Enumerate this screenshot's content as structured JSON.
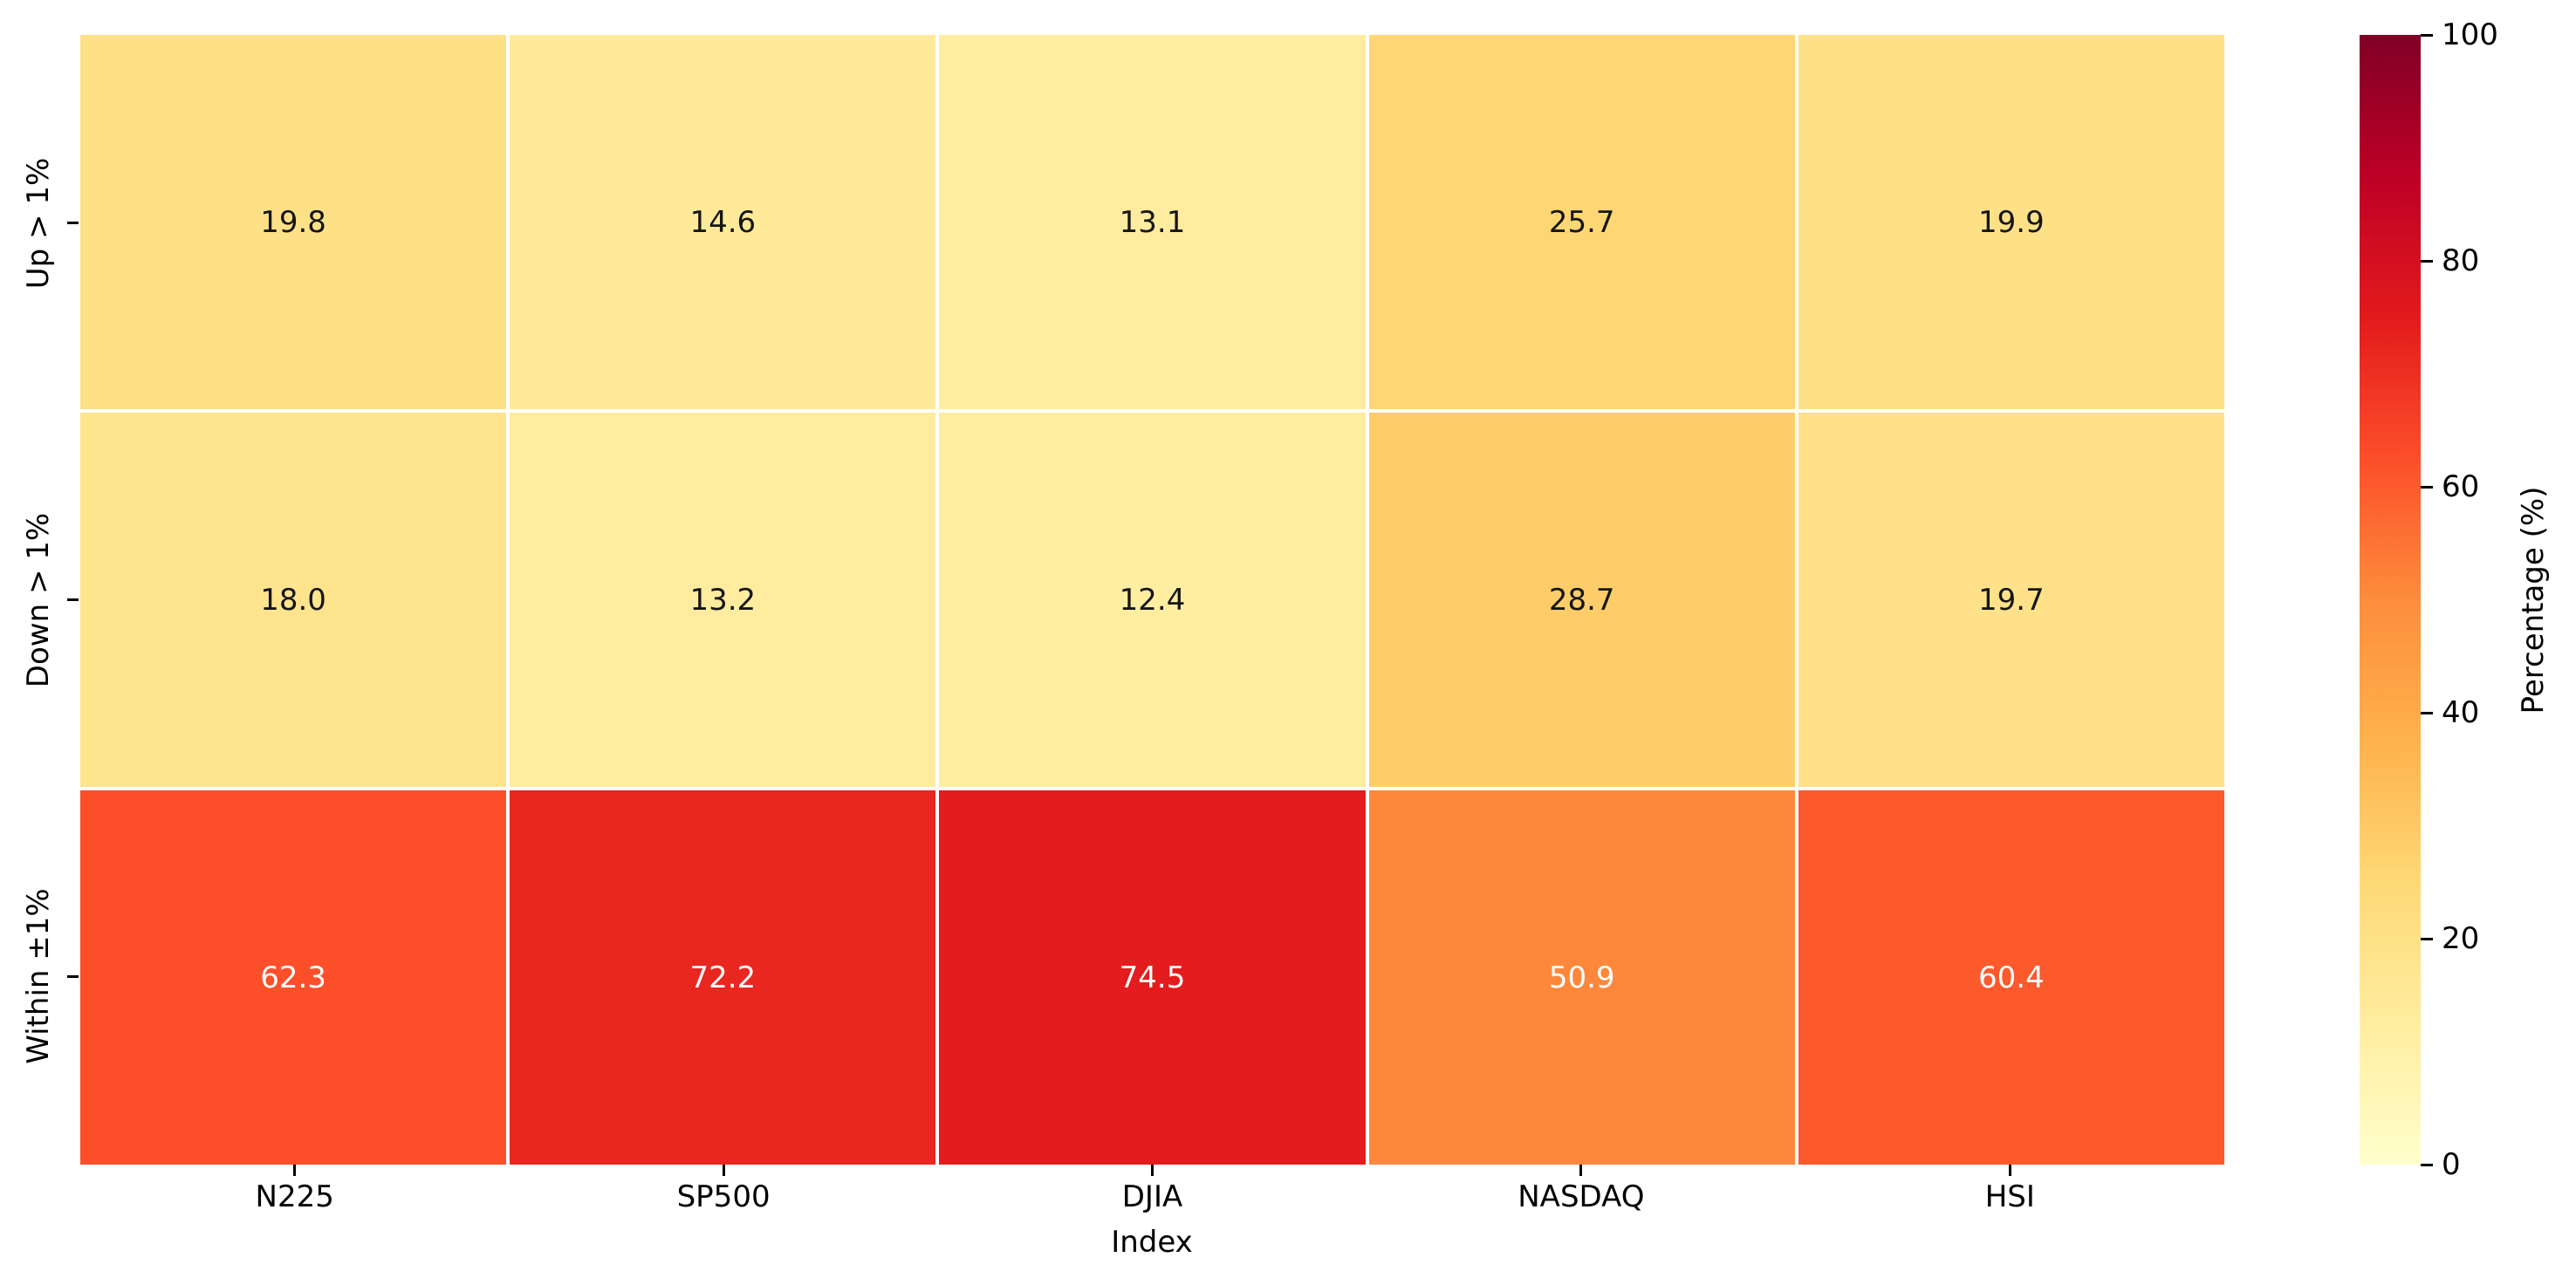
{
  "chart_data": {
    "type": "heatmap",
    "xlabel": "Index",
    "colorbar_label": "Percentage (%)",
    "columns": [
      "N225",
      "SP500",
      "DJIA",
      "NASDAQ",
      "HSI"
    ],
    "rows": [
      "Up > 1%",
      "Down > 1%",
      "Within ±1%"
    ],
    "values": [
      [
        19.8,
        14.6,
        13.1,
        25.7,
        19.9
      ],
      [
        18.0,
        13.2,
        12.4,
        28.7,
        19.7
      ],
      [
        62.3,
        72.2,
        74.5,
        50.9,
        60.4
      ]
    ],
    "value_decimals": 1,
    "vmin": 0,
    "vmax": 100,
    "colorbar_ticks": [
      0,
      20,
      40,
      60,
      80,
      100
    ],
    "colormap": "YlOrRd",
    "colormap_stops": [
      {
        "t": 0.0,
        "color": "#ffffcc"
      },
      {
        "t": 0.125,
        "color": "#ffeda0"
      },
      {
        "t": 0.25,
        "color": "#fed976"
      },
      {
        "t": 0.375,
        "color": "#feb24c"
      },
      {
        "t": 0.5,
        "color": "#fd8d3c"
      },
      {
        "t": 0.625,
        "color": "#fc4e2a"
      },
      {
        "t": 0.75,
        "color": "#e31a1c"
      },
      {
        "t": 0.875,
        "color": "#bd0026"
      },
      {
        "t": 1.0,
        "color": "#800026"
      }
    ],
    "annotation_dark_text_color": "#151515",
    "annotation_light_text_color": "#ffffff",
    "gridline_color": "#ffffff",
    "legend_position": "right",
    "grid": false
  }
}
